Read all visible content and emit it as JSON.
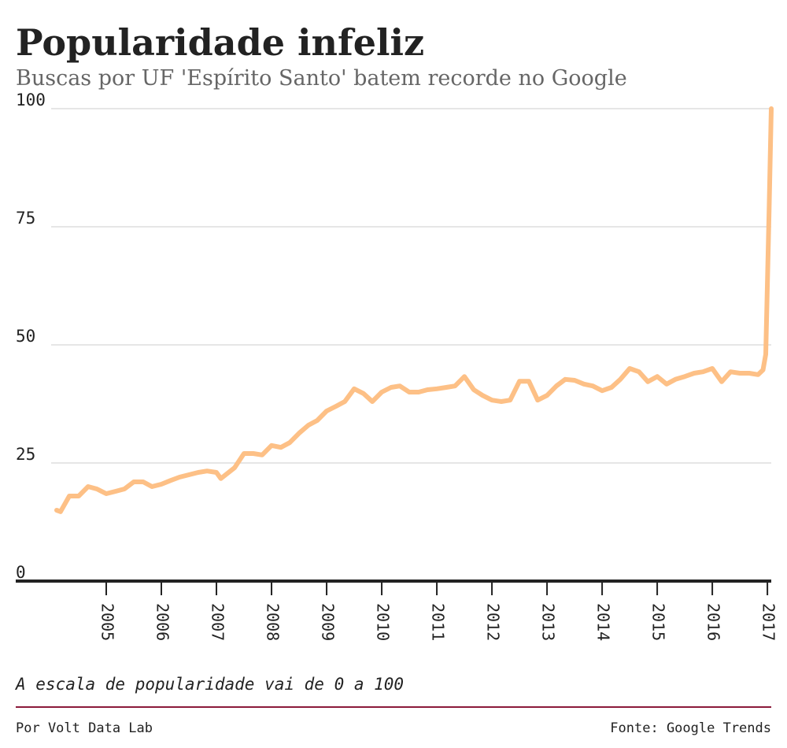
{
  "chart_data": {
    "type": "line",
    "title": "Popularidade infeliz",
    "subtitle": "Buscas por UF 'Espírito Santo' batem recorde no Google",
    "note": "A escala de popularidade vai de 0 a 100",
    "credit": "Por Volt Data Lab",
    "source": "Fonte: Google Trends",
    "color": "#fdc086",
    "grid": true,
    "x": [
      2004.1,
      2004.17,
      2004.33,
      2004.5,
      2004.67,
      2004.83,
      2005.0,
      2005.17,
      2005.33,
      2005.5,
      2005.67,
      2005.83,
      2006.0,
      2006.17,
      2006.33,
      2006.5,
      2006.67,
      2006.83,
      2007.0,
      2007.08,
      2007.33,
      2007.5,
      2007.67,
      2007.83,
      2008.0,
      2008.17,
      2008.33,
      2008.5,
      2008.67,
      2008.83,
      2009.0,
      2009.17,
      2009.33,
      2009.5,
      2009.67,
      2009.83,
      2010.0,
      2010.17,
      2010.33,
      2010.5,
      2010.67,
      2010.83,
      2011.0,
      2011.17,
      2011.33,
      2011.5,
      2011.67,
      2011.83,
      2012.0,
      2012.17,
      2012.33,
      2012.5,
      2012.67,
      2012.83,
      2013.0,
      2013.17,
      2013.33,
      2013.5,
      2013.67,
      2013.83,
      2014.0,
      2014.17,
      2014.33,
      2014.5,
      2014.67,
      2014.83,
      2015.0,
      2015.17,
      2015.33,
      2015.5,
      2015.67,
      2015.83,
      2016.0,
      2016.17,
      2016.33,
      2016.5,
      2016.67,
      2016.83,
      2016.92,
      2016.97,
      2017.03,
      2017.07
    ],
    "values": [
      15,
      14.7,
      18,
      18,
      20,
      19.5,
      18.5,
      19,
      19.5,
      21,
      21,
      20,
      20.5,
      21.3,
      22,
      22.5,
      23,
      23.3,
      23,
      21.7,
      24,
      27,
      27,
      26.7,
      28.7,
      28.3,
      29.3,
      31.3,
      33,
      34,
      36,
      37,
      38,
      40.7,
      39.7,
      38,
      40,
      41,
      41.3,
      40,
      40,
      40.5,
      40.7,
      41,
      41.3,
      43.3,
      40.5,
      39.3,
      38.3,
      38,
      38.3,
      42.3,
      42.3,
      38.3,
      39.3,
      41.3,
      42.7,
      42.5,
      41.7,
      41.3,
      40.3,
      41,
      42.7,
      45,
      44.3,
      42.2,
      43.3,
      41.7,
      42.7,
      43.3,
      44,
      44.3,
      45,
      42.2,
      44.3,
      44,
      44,
      43.7,
      44.7,
      48,
      78,
      100
    ],
    "xlim": [
      2004,
      2017.07
    ],
    "xticks": [
      2005,
      2006,
      2007,
      2008,
      2009,
      2010,
      2011,
      2012,
      2013,
      2014,
      2015,
      2016,
      2017
    ],
    "ylim": [
      0,
      100
    ],
    "yticks": [
      0,
      25,
      50,
      75,
      100
    ]
  }
}
